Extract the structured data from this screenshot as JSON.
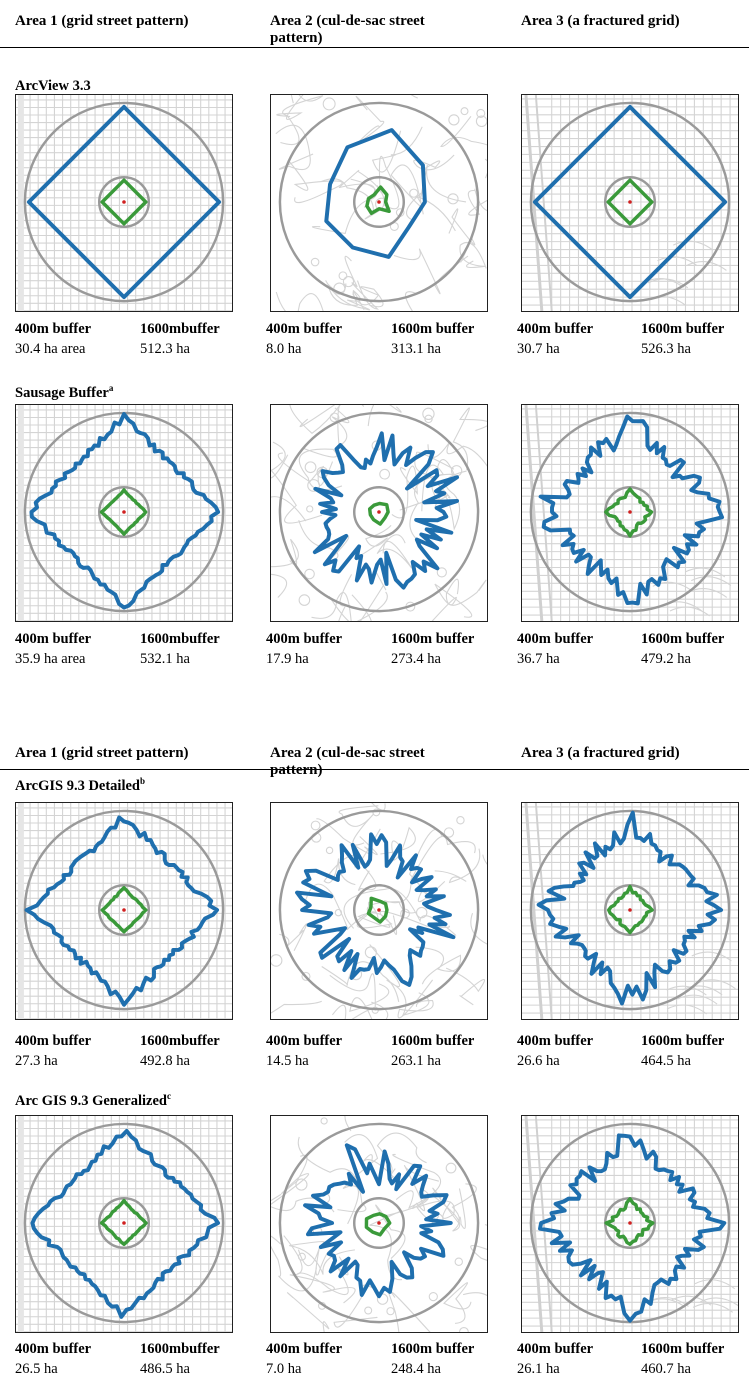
{
  "columns": [
    "Area 1 (grid street pattern)",
    "Area 2 (cul-de-sac street\npattern)",
    "Area 3 (a fractured grid)"
  ],
  "sections": [
    {
      "title": "ArcView 3.3",
      "sup": "",
      "captions": [
        {
          "l1": "400m buffer",
          "l2": "30.4 ha area",
          "r1": "1600mbuffer",
          "r2": "512.3 ha"
        },
        {
          "l1": "400m buffer",
          "l2": "8.0 ha",
          "r1": "1600m buffer",
          "r2": "313.1 ha"
        },
        {
          "l1": "400m buffer",
          "l2": "30.7 ha",
          "r1": "1600m buffer",
          "r2": "526.3 ha"
        }
      ]
    },
    {
      "title": "Sausage Buffer",
      "sup": "a",
      "captions": [
        {
          "l1": "400m buffer",
          "l2": "35.9 ha area",
          "r1": "1600mbuffer",
          "r2": "532.1 ha"
        },
        {
          "l1": "400m buffer",
          "l2": "17.9 ha",
          "r1": "1600m buffer",
          "r2": "273.4 ha"
        },
        {
          "l1": "400m buffer",
          "l2": "36.7 ha",
          "r1": "1600m buffer",
          "r2": "479.2  ha"
        }
      ]
    },
    {
      "title": "ArcGIS 9.3 Detailed",
      "sup": "b",
      "captions": [
        {
          "l1": "400m buffer",
          "l2": "27.3 ha",
          "r1": "1600mbuffer",
          "r2": "492.8 ha"
        },
        {
          "l1": "400m buffer",
          "l2": "14.5 ha",
          "r1": "1600m buffer",
          "r2": "263.1 ha"
        },
        {
          "l1": "400m buffer",
          "l2": "26.6 ha",
          "r1": "1600m buffer",
          "r2": "464.5 ha"
        }
      ]
    },
    {
      "title": "Arc GIS 9.3 Generalized",
      "sup": "c",
      "captions": [
        {
          "l1": "400m buffer",
          "l2": "26.5 ha",
          "r1": "1600mbuffer",
          "r2": "486.5 ha"
        },
        {
          "l1": "400m buffer",
          "l2": "7.0 ha",
          "r1": "1600m buffer",
          "r2": "248.4 ha"
        },
        {
          "l1": "400m buffer",
          "l2": "26.1 ha",
          "r1": "1600m buffer",
          "r2": "460.7 ha"
        }
      ]
    }
  ],
  "colors": {
    "buffer_1600m": "#1f6fae",
    "buffer_400m": "#3a9a3a",
    "radius_circle": "#9a9a9a",
    "street": "#d4d4d4",
    "center_point": "#d02020"
  }
}
